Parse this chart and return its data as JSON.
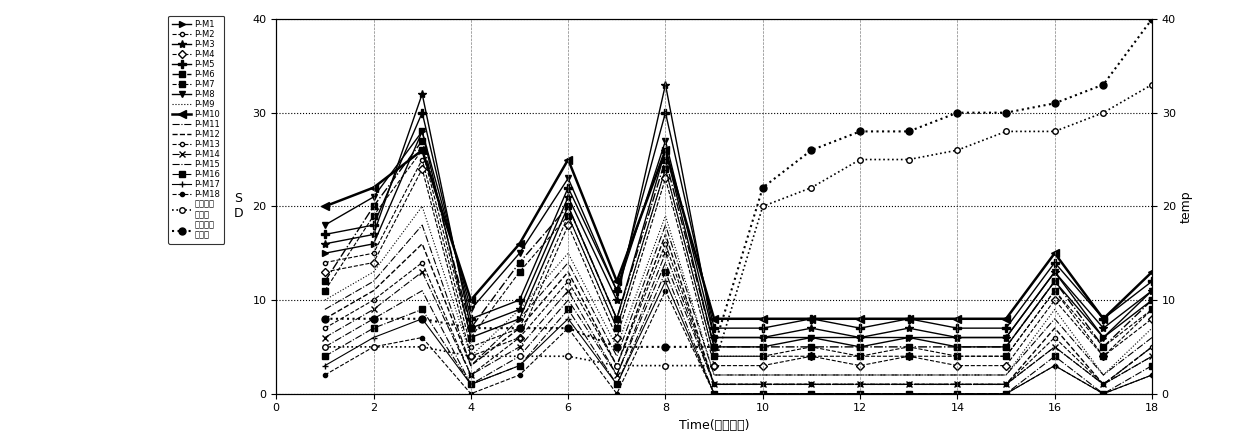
{
  "x": [
    1,
    2,
    3,
    4,
    5,
    6,
    7,
    8,
    9,
    10,
    11,
    12,
    13,
    14,
    15,
    16,
    17,
    18
  ],
  "series": {
    "P-M1": [
      15,
      16,
      28,
      6,
      8,
      20,
      8,
      26,
      5,
      5,
      6,
      5,
      6,
      5,
      5,
      12,
      6,
      10
    ],
    "P-M2": [
      14,
      15,
      25,
      5,
      7,
      19,
      7,
      24,
      4,
      4,
      5,
      4,
      5,
      4,
      4,
      11,
      5,
      9
    ],
    "P-M3": [
      16,
      17,
      32,
      7,
      9,
      21,
      10,
      33,
      6,
      6,
      7,
      6,
      7,
      6,
      6,
      13,
      7,
      11
    ],
    "P-M4": [
      13,
      14,
      24,
      4,
      6,
      18,
      6,
      23,
      3,
      3,
      4,
      3,
      4,
      3,
      3,
      10,
      4,
      8
    ],
    "P-M5": [
      17,
      18,
      30,
      8,
      10,
      22,
      11,
      30,
      7,
      7,
      8,
      7,
      8,
      7,
      7,
      14,
      8,
      12
    ],
    "P-M6": [
      12,
      20,
      27,
      7,
      14,
      20,
      8,
      25,
      5,
      5,
      5,
      5,
      5,
      5,
      5,
      12,
      5,
      10
    ],
    "P-M7": [
      11,
      19,
      26,
      6,
      13,
      19,
      7,
      24,
      4,
      4,
      4,
      4,
      4,
      4,
      4,
      11,
      4,
      9
    ],
    "P-M8": [
      18,
      21,
      28,
      9,
      15,
      23,
      11,
      27,
      6,
      6,
      6,
      6,
      6,
      6,
      6,
      13,
      6,
      11
    ],
    "P-M9": [
      10,
      13,
      20,
      4,
      9,
      15,
      5,
      19,
      2,
      2,
      2,
      2,
      2,
      2,
      2,
      9,
      2,
      7
    ],
    "P-M10": [
      20,
      22,
      26,
      10,
      16,
      25,
      12,
      26,
      8,
      8,
      8,
      8,
      8,
      8,
      8,
      15,
      8,
      13
    ],
    "P-M11": [
      9,
      12,
      18,
      3,
      8,
      14,
      4,
      18,
      2,
      2,
      2,
      2,
      2,
      2,
      2,
      8,
      2,
      6
    ],
    "P-M12": [
      8,
      11,
      16,
      3,
      7,
      13,
      3,
      17,
      1,
      1,
      1,
      1,
      1,
      1,
      1,
      7,
      1,
      5
    ],
    "P-M13": [
      7,
      10,
      14,
      2,
      6,
      12,
      3,
      16,
      1,
      1,
      1,
      1,
      1,
      1,
      1,
      6,
      1,
      5
    ],
    "P-M14": [
      6,
      9,
      13,
      2,
      5,
      11,
      2,
      15,
      1,
      1,
      1,
      1,
      1,
      1,
      1,
      5,
      1,
      4
    ],
    "P-M15": [
      5,
      8,
      11,
      1,
      4,
      10,
      2,
      14,
      1,
      1,
      1,
      1,
      1,
      1,
      1,
      5,
      1,
      4
    ],
    "P-M16": [
      4,
      7,
      9,
      1,
      3,
      9,
      1,
      13,
      0,
      0,
      0,
      0,
      0,
      0,
      0,
      4,
      0,
      3
    ],
    "P-M17": [
      3,
      6,
      8,
      1,
      3,
      8,
      1,
      12,
      0,
      0,
      0,
      0,
      0,
      0,
      0,
      3,
      0,
      2
    ],
    "P-M18": [
      2,
      5,
      6,
      0,
      2,
      7,
      0,
      11,
      0,
      0,
      0,
      0,
      0,
      0,
      0,
      3,
      0,
      2
    ],
    "temp_min": [
      5,
      5,
      5,
      4,
      4,
      4,
      3,
      3,
      3,
      20,
      22,
      25,
      25,
      26,
      28,
      28,
      30,
      33
    ],
    "temp_max": [
      8,
      8,
      8,
      7,
      7,
      7,
      5,
      5,
      5,
      22,
      26,
      28,
      28,
      30,
      30,
      31,
      33,
      40
    ]
  },
  "line_styles": {
    "P-M1": {
      "ls": "-",
      "marker": ">",
      "ms": 4,
      "lw": 1.0,
      "mfc": "black"
    },
    "P-M2": {
      "ls": "--",
      "marker": "o",
      "ms": 3,
      "lw": 0.8,
      "mfc": "white"
    },
    "P-M3": {
      "ls": "-",
      "marker": "*",
      "ms": 6,
      "lw": 1.0,
      "mfc": "black"
    },
    "P-M4": {
      "ls": "--",
      "marker": "D",
      "ms": 4,
      "lw": 0.8,
      "mfc": "white"
    },
    "P-M5": {
      "ls": "-",
      "marker": "P",
      "ms": 6,
      "lw": 1.0,
      "mfc": "black"
    },
    "P-M6": {
      "ls": "-.",
      "marker": "s",
      "ms": 5,
      "lw": 1.0,
      "mfc": "black"
    },
    "P-M7": {
      "ls": "--",
      "marker": "s",
      "ms": 4,
      "lw": 0.8,
      "mfc": "black"
    },
    "P-M8": {
      "ls": "-",
      "marker": "v",
      "ms": 5,
      "lw": 1.0,
      "mfc": "black"
    },
    "P-M9": {
      "ls": ":",
      "marker": "",
      "ms": 0,
      "lw": 0.8,
      "mfc": "black"
    },
    "P-M10": {
      "ls": "-",
      "marker": "<",
      "ms": 6,
      "lw": 1.8,
      "mfc": "black"
    },
    "P-M11": {
      "ls": "-.",
      "marker": "",
      "ms": 0,
      "lw": 0.8,
      "mfc": "black"
    },
    "P-M12": {
      "ls": "--",
      "marker": "",
      "ms": 0,
      "lw": 1.0,
      "mfc": "black"
    },
    "P-M13": {
      "ls": "--",
      "marker": "o",
      "ms": 3,
      "lw": 0.8,
      "mfc": "white"
    },
    "P-M14": {
      "ls": "-.",
      "marker": "x",
      "ms": 5,
      "lw": 0.8,
      "mfc": "black"
    },
    "P-M15": {
      "ls": "-.",
      "marker": "",
      "ms": 0,
      "lw": 0.8,
      "mfc": "black"
    },
    "P-M16": {
      "ls": "-.",
      "marker": "s",
      "ms": 4,
      "lw": 0.8,
      "mfc": "black"
    },
    "P-M17": {
      "ls": "-",
      "marker": "+",
      "ms": 5,
      "lw": 0.8,
      "mfc": "black"
    },
    "P-M18": {
      "ls": "--",
      "marker": "o",
      "ms": 3,
      "lw": 0.8,
      "mfc": "black"
    }
  },
  "xlim": [
    0,
    18
  ],
  "ylim": [
    0,
    40
  ],
  "xlabel": "Time(实验批次)",
  "ylabel_left": "S\nD",
  "ylabel_right": "temp",
  "xticks": [
    0,
    2,
    4,
    6,
    8,
    10,
    12,
    14,
    16,
    18
  ],
  "yticks": [
    0,
    10,
    20,
    30,
    40
  ],
  "legend_series": [
    "P-M1",
    "P-M2",
    "P-M3",
    "P-M4",
    "P-M5",
    "P-M6",
    "P-M7",
    "P-M8",
    "P-M9",
    "P-M10",
    "P-M11",
    "P-M12",
    "P-M13",
    "P-M14",
    "P-M15",
    "P-M16",
    "P-M17",
    "P-M18"
  ],
  "legend_temp_min": "环境温变\n最低位",
  "legend_temp_max": "环境温变\n最高位"
}
